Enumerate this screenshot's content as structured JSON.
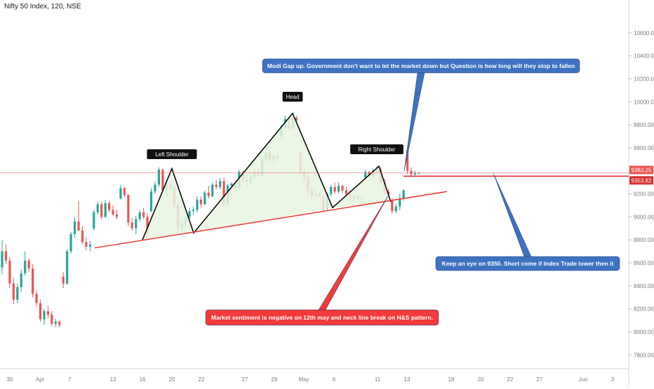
{
  "title": "Nifty 50 Index, 120, NSE",
  "colors": {
    "up": "#26a69a",
    "down": "#ef5350",
    "neckline": "#e53935",
    "pattern_fill": "#e8f5e1",
    "callout_blue": "#3f72c0",
    "callout_red": "#f23a3a",
    "price_line": "#f07070",
    "axis_text": "#787b86"
  },
  "chart_data": {
    "type": "candlestick",
    "y_ticks": [
      "7800.00",
      "8000.00",
      "8200.00",
      "8400.00",
      "8600.00",
      "8800.00",
      "9000.00",
      "9200.00",
      "9400.00",
      "9600.00",
      "9800.00",
      "10000.00",
      "10200.00",
      "10400.00",
      "10600.00"
    ],
    "x_ticks": [
      "30",
      "Apr",
      "7",
      "13",
      "16",
      "20",
      "22",
      "27",
      "29",
      "May",
      "6",
      "11",
      "13",
      "18",
      "20",
      "22",
      "27",
      "Jun",
      "3"
    ],
    "ylim": [
      7680,
      10800
    ],
    "price_labels": [
      "9383.25",
      "9353.82"
    ],
    "annotations": {
      "left_shoulder": "Left Shoulder",
      "head": "Head",
      "right_shoulder": "Right Shoulder",
      "callout_gap": "Modi Gap up. Government don't want to let the market down but Question is how long will they stop to fallen",
      "callout_short": "Keep an eye on 9350. Short come if Index Trade lower then it",
      "callout_sentiment": "Market sentiment is negative on 12th may and neck line break on H&S pattern."
    },
    "pattern": {
      "points": [
        [
          8800,
          0
        ],
        [
          9420,
          1
        ],
        [
          8860,
          2
        ],
        [
          9900,
          3
        ],
        [
          9080,
          4
        ],
        [
          9440,
          5
        ],
        [
          9130,
          6
        ]
      ],
      "neckline_start": 8730,
      "neckline_end": 9220
    },
    "candles": [
      {
        "o": 8560,
        "h": 8800,
        "l": 8500,
        "c": 8700
      },
      {
        "o": 8700,
        "h": 8760,
        "l": 8590,
        "c": 8620
      },
      {
        "o": 8620,
        "h": 8650,
        "l": 8380,
        "c": 8420
      },
      {
        "o": 8420,
        "h": 8470,
        "l": 8240,
        "c": 8280
      },
      {
        "o": 8280,
        "h": 8420,
        "l": 8250,
        "c": 8390
      },
      {
        "o": 8390,
        "h": 8540,
        "l": 8350,
        "c": 8510
      },
      {
        "o": 8510,
        "h": 8700,
        "l": 8490,
        "c": 8620
      },
      {
        "o": 8620,
        "h": 8640,
        "l": 8520,
        "c": 8550
      },
      {
        "o": 8550,
        "h": 8590,
        "l": 8300,
        "c": 8330
      },
      {
        "o": 8330,
        "h": 8360,
        "l": 8220,
        "c": 8250
      },
      {
        "o": 8250,
        "h": 8280,
        "l": 8090,
        "c": 8110
      },
      {
        "o": 8110,
        "h": 8200,
        "l": 8060,
        "c": 8180
      },
      {
        "o": 8180,
        "h": 8230,
        "l": 8120,
        "c": 8150
      },
      {
        "o": 8150,
        "h": 8180,
        "l": 8050,
        "c": 8070
      },
      {
        "o": 8070,
        "h": 8110,
        "l": 8040,
        "c": 8090
      },
      {
        "o": 8090,
        "h": 8100,
        "l": 8040,
        "c": 8060
      },
      {
        "o": 8480,
        "h": 8520,
        "l": 8380,
        "c": 8420
      },
      {
        "o": 8420,
        "h": 8720,
        "l": 8410,
        "c": 8700
      },
      {
        "o": 8700,
        "h": 8870,
        "l": 8680,
        "c": 8850
      },
      {
        "o": 8850,
        "h": 9000,
        "l": 8820,
        "c": 8960
      },
      {
        "o": 8960,
        "h": 9140,
        "l": 8900,
        "c": 8880
      },
      {
        "o": 8880,
        "h": 8920,
        "l": 8760,
        "c": 8780
      },
      {
        "o": 8780,
        "h": 8820,
        "l": 8710,
        "c": 8740
      },
      {
        "o": 8740,
        "h": 8790,
        "l": 8700,
        "c": 8760
      },
      {
        "o": 8900,
        "h": 9060,
        "l": 8880,
        "c": 9040
      },
      {
        "o": 9040,
        "h": 9130,
        "l": 9020,
        "c": 9110
      },
      {
        "o": 9110,
        "h": 9130,
        "l": 8980,
        "c": 9000
      },
      {
        "o": 9000,
        "h": 9150,
        "l": 8990,
        "c": 9120
      },
      {
        "o": 9120,
        "h": 9140,
        "l": 9040,
        "c": 9060
      },
      {
        "o": 9060,
        "h": 9100,
        "l": 9010,
        "c": 9020
      },
      {
        "o": 9020,
        "h": 9060,
        "l": 8980,
        "c": 9000
      },
      {
        "o": 9160,
        "h": 9280,
        "l": 9150,
        "c": 9250
      },
      {
        "o": 9250,
        "h": 9260,
        "l": 9170,
        "c": 9190
      },
      {
        "o": 9190,
        "h": 9200,
        "l": 8920,
        "c": 8950
      },
      {
        "o": 8950,
        "h": 8990,
        "l": 8880,
        "c": 8900
      },
      {
        "o": 8900,
        "h": 9010,
        "l": 8850,
        "c": 8980
      },
      {
        "o": 8980,
        "h": 9060,
        "l": 8960,
        "c": 9040
      },
      {
        "o": 9040,
        "h": 9080,
        "l": 8980,
        "c": 9000
      },
      {
        "o": 9000,
        "h": 9030,
        "l": 8820,
        "c": 8850
      },
      {
        "o": 9050,
        "h": 9250,
        "l": 9040,
        "c": 9220
      },
      {
        "o": 9220,
        "h": 9310,
        "l": 9200,
        "c": 9280
      },
      {
        "o": 9280,
        "h": 9430,
        "l": 9260,
        "c": 9410
      },
      {
        "o": 9410,
        "h": 9420,
        "l": 9200,
        "c": 9230
      },
      {
        "o": 9230,
        "h": 9300,
        "l": 9180,
        "c": 9280
      },
      {
        "o": 9280,
        "h": 9320,
        "l": 9230,
        "c": 9250
      },
      {
        "o": 9250,
        "h": 9270,
        "l": 9080,
        "c": 9100
      },
      {
        "o": 9100,
        "h": 9140,
        "l": 8860,
        "c": 8900
      },
      {
        "o": 8900,
        "h": 8960,
        "l": 8870,
        "c": 8940
      },
      {
        "o": 8940,
        "h": 9020,
        "l": 8900,
        "c": 9000
      },
      {
        "o": 9000,
        "h": 9080,
        "l": 8980,
        "c": 9050
      },
      {
        "o": 9050,
        "h": 9090,
        "l": 9020,
        "c": 9060
      },
      {
        "o": 9060,
        "h": 9180,
        "l": 9040,
        "c": 9150
      },
      {
        "o": 9150,
        "h": 9180,
        "l": 9080,
        "c": 9110
      },
      {
        "o": 9110,
        "h": 9230,
        "l": 9100,
        "c": 9210
      },
      {
        "o": 9210,
        "h": 9270,
        "l": 9160,
        "c": 9180
      },
      {
        "o": 9180,
        "h": 9300,
        "l": 9170,
        "c": 9280
      },
      {
        "o": 9280,
        "h": 9320,
        "l": 9240,
        "c": 9260
      },
      {
        "o": 9260,
        "h": 9340,
        "l": 9240,
        "c": 9310
      },
      {
        "o": 9310,
        "h": 9340,
        "l": 9090,
        "c": 9110
      },
      {
        "o": 9110,
        "h": 9290,
        "l": 9090,
        "c": 9270
      },
      {
        "o": 9270,
        "h": 9300,
        "l": 9220,
        "c": 9290
      },
      {
        "o": 9290,
        "h": 9310,
        "l": 9230,
        "c": 9250
      },
      {
        "o": 9250,
        "h": 9410,
        "l": 9240,
        "c": 9390
      },
      {
        "o": 9390,
        "h": 9400,
        "l": 9290,
        "c": 9320
      },
      {
        "o": 9320,
        "h": 9360,
        "l": 9260,
        "c": 9300
      },
      {
        "o": 9300,
        "h": 9390,
        "l": 9280,
        "c": 9350
      },
      {
        "o": 9350,
        "h": 9420,
        "l": 9330,
        "c": 9380
      },
      {
        "o": 9380,
        "h": 9420,
        "l": 9340,
        "c": 9360
      },
      {
        "o": 9360,
        "h": 9520,
        "l": 9350,
        "c": 9500
      },
      {
        "o": 9500,
        "h": 9600,
        "l": 9490,
        "c": 9560
      },
      {
        "o": 9560,
        "h": 9580,
        "l": 9470,
        "c": 9500
      },
      {
        "o": 9500,
        "h": 9540,
        "l": 9450,
        "c": 9530
      },
      {
        "o": 9530,
        "h": 9560,
        "l": 9490,
        "c": 9510
      },
      {
        "o": 9700,
        "h": 9800,
        "l": 9680,
        "c": 9780
      },
      {
        "o": 9780,
        "h": 9880,
        "l": 9760,
        "c": 9850
      },
      {
        "o": 9850,
        "h": 9870,
        "l": 9750,
        "c": 9770
      },
      {
        "o": 9770,
        "h": 9890,
        "l": 9760,
        "c": 9860
      },
      {
        "o": 9860,
        "h": 9880,
        "l": 9820,
        "c": 9840
      },
      {
        "o": 9560,
        "h": 9580,
        "l": 9360,
        "c": 9390
      },
      {
        "o": 9390,
        "h": 9420,
        "l": 9300,
        "c": 9340
      },
      {
        "o": 9340,
        "h": 9370,
        "l": 9200,
        "c": 9230
      },
      {
        "o": 9230,
        "h": 9260,
        "l": 9160,
        "c": 9190
      },
      {
        "o": 9190,
        "h": 9230,
        "l": 9160,
        "c": 9200
      },
      {
        "o": 9200,
        "h": 9220,
        "l": 9170,
        "c": 9180
      },
      {
        "o": 9180,
        "h": 9200,
        "l": 9040,
        "c": 9070
      },
      {
        "o": 9070,
        "h": 9210,
        "l": 9060,
        "c": 9200
      },
      {
        "o": 9200,
        "h": 9280,
        "l": 9180,
        "c": 9260
      },
      {
        "o": 9260,
        "h": 9300,
        "l": 9200,
        "c": 9220
      },
      {
        "o": 9220,
        "h": 9300,
        "l": 9200,
        "c": 9270
      },
      {
        "o": 9270,
        "h": 9280,
        "l": 9210,
        "c": 9230
      },
      {
        "o": 9230,
        "h": 9260,
        "l": 9180,
        "c": 9200
      },
      {
        "o": 9200,
        "h": 9230,
        "l": 9140,
        "c": 9160
      },
      {
        "o": 9160,
        "h": 9200,
        "l": 9130,
        "c": 9180
      },
      {
        "o": 9180,
        "h": 9190,
        "l": 9150,
        "c": 9160
      },
      {
        "o": 9160,
        "h": 9180,
        "l": 9140,
        "c": 9170
      },
      {
        "o": 9340,
        "h": 9410,
        "l": 9330,
        "c": 9390
      },
      {
        "o": 9390,
        "h": 9400,
        "l": 9330,
        "c": 9350
      },
      {
        "o": 9350,
        "h": 9420,
        "l": 9340,
        "c": 9400
      },
      {
        "o": 9400,
        "h": 9440,
        "l": 9370,
        "c": 9410
      },
      {
        "o": 9410,
        "h": 9430,
        "l": 9280,
        "c": 9300
      },
      {
        "o": 9300,
        "h": 9330,
        "l": 9190,
        "c": 9220
      },
      {
        "o": 9220,
        "h": 9240,
        "l": 9190,
        "c": 9200
      },
      {
        "o": 9140,
        "h": 9160,
        "l": 9030,
        "c": 9050
      },
      {
        "o": 9050,
        "h": 9110,
        "l": 9030,
        "c": 9090
      },
      {
        "o": 9090,
        "h": 9200,
        "l": 9060,
        "c": 9160
      },
      {
        "o": 9160,
        "h": 9240,
        "l": 9140,
        "c": 9230
      },
      {
        "o": 9580,
        "h": 9590,
        "l": 9370,
        "c": 9400
      },
      {
        "o": 9400,
        "h": 9430,
        "l": 9350,
        "c": 9370
      },
      {
        "o": 9370,
        "h": 9400,
        "l": 9350,
        "c": 9380
      },
      {
        "o": 9380,
        "h": 9390,
        "l": 9370,
        "c": 9383
      }
    ]
  }
}
